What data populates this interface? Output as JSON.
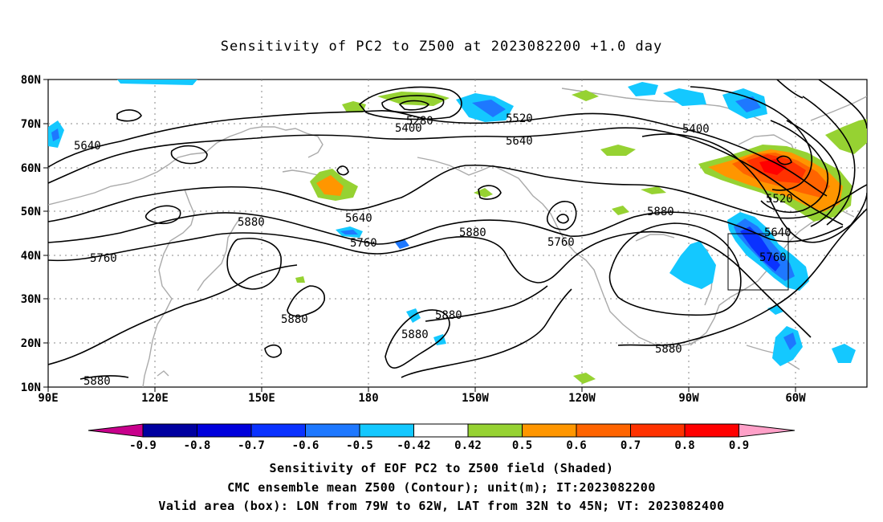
{
  "title": "Sensitivity of PC2 to Z500 at 2023082200 +1.0 day",
  "map": {
    "lat_labels": [
      "80N",
      "70N",
      "60N",
      "50N",
      "40N",
      "30N",
      "20N",
      "10N"
    ],
    "lon_labels": [
      "90E",
      "120E",
      "150E",
      "180",
      "150W",
      "120W",
      "90W",
      "60W"
    ],
    "contour_labels": [
      "5280",
      "5400",
      "5520",
      "5400",
      "5640",
      "5640",
      "5640",
      "5520",
      "5640",
      "5760",
      "5880",
      "5880",
      "5760",
      "5880",
      "5760",
      "5760",
      "5880",
      "5880",
      "5880",
      "5880",
      "5880"
    ],
    "valid_box": {
      "lon_min": "79W",
      "lon_max": "62W",
      "lat_min": "32N",
      "lat_max": "45N"
    }
  },
  "colorbar": {
    "labels": [
      "-0.9",
      "-0.8",
      "-0.7",
      "-0.6",
      "-0.5",
      "-0.42",
      "0.42",
      "0.5",
      "0.6",
      "0.7",
      "0.8",
      "0.9"
    ],
    "colors": [
      "#c8008c",
      "#0000a0",
      "#0000dc",
      "#0a32ff",
      "#1e78ff",
      "#14c8ff",
      "#ffffff",
      "#96d232",
      "#ff9600",
      "#ff6400",
      "#ff3200",
      "#ff0000",
      "#ffa0c8"
    ]
  },
  "footer": {
    "line1": "Sensitivity of EOF PC2 to Z500 field (Shaded)",
    "line2": "CMC ensemble mean Z500 (Contour); unit(m); IT:2023082200",
    "line3": "Valid area (box): LON from 79W to 62W, LAT from 32N to 45N; VT: 2023082400"
  }
}
